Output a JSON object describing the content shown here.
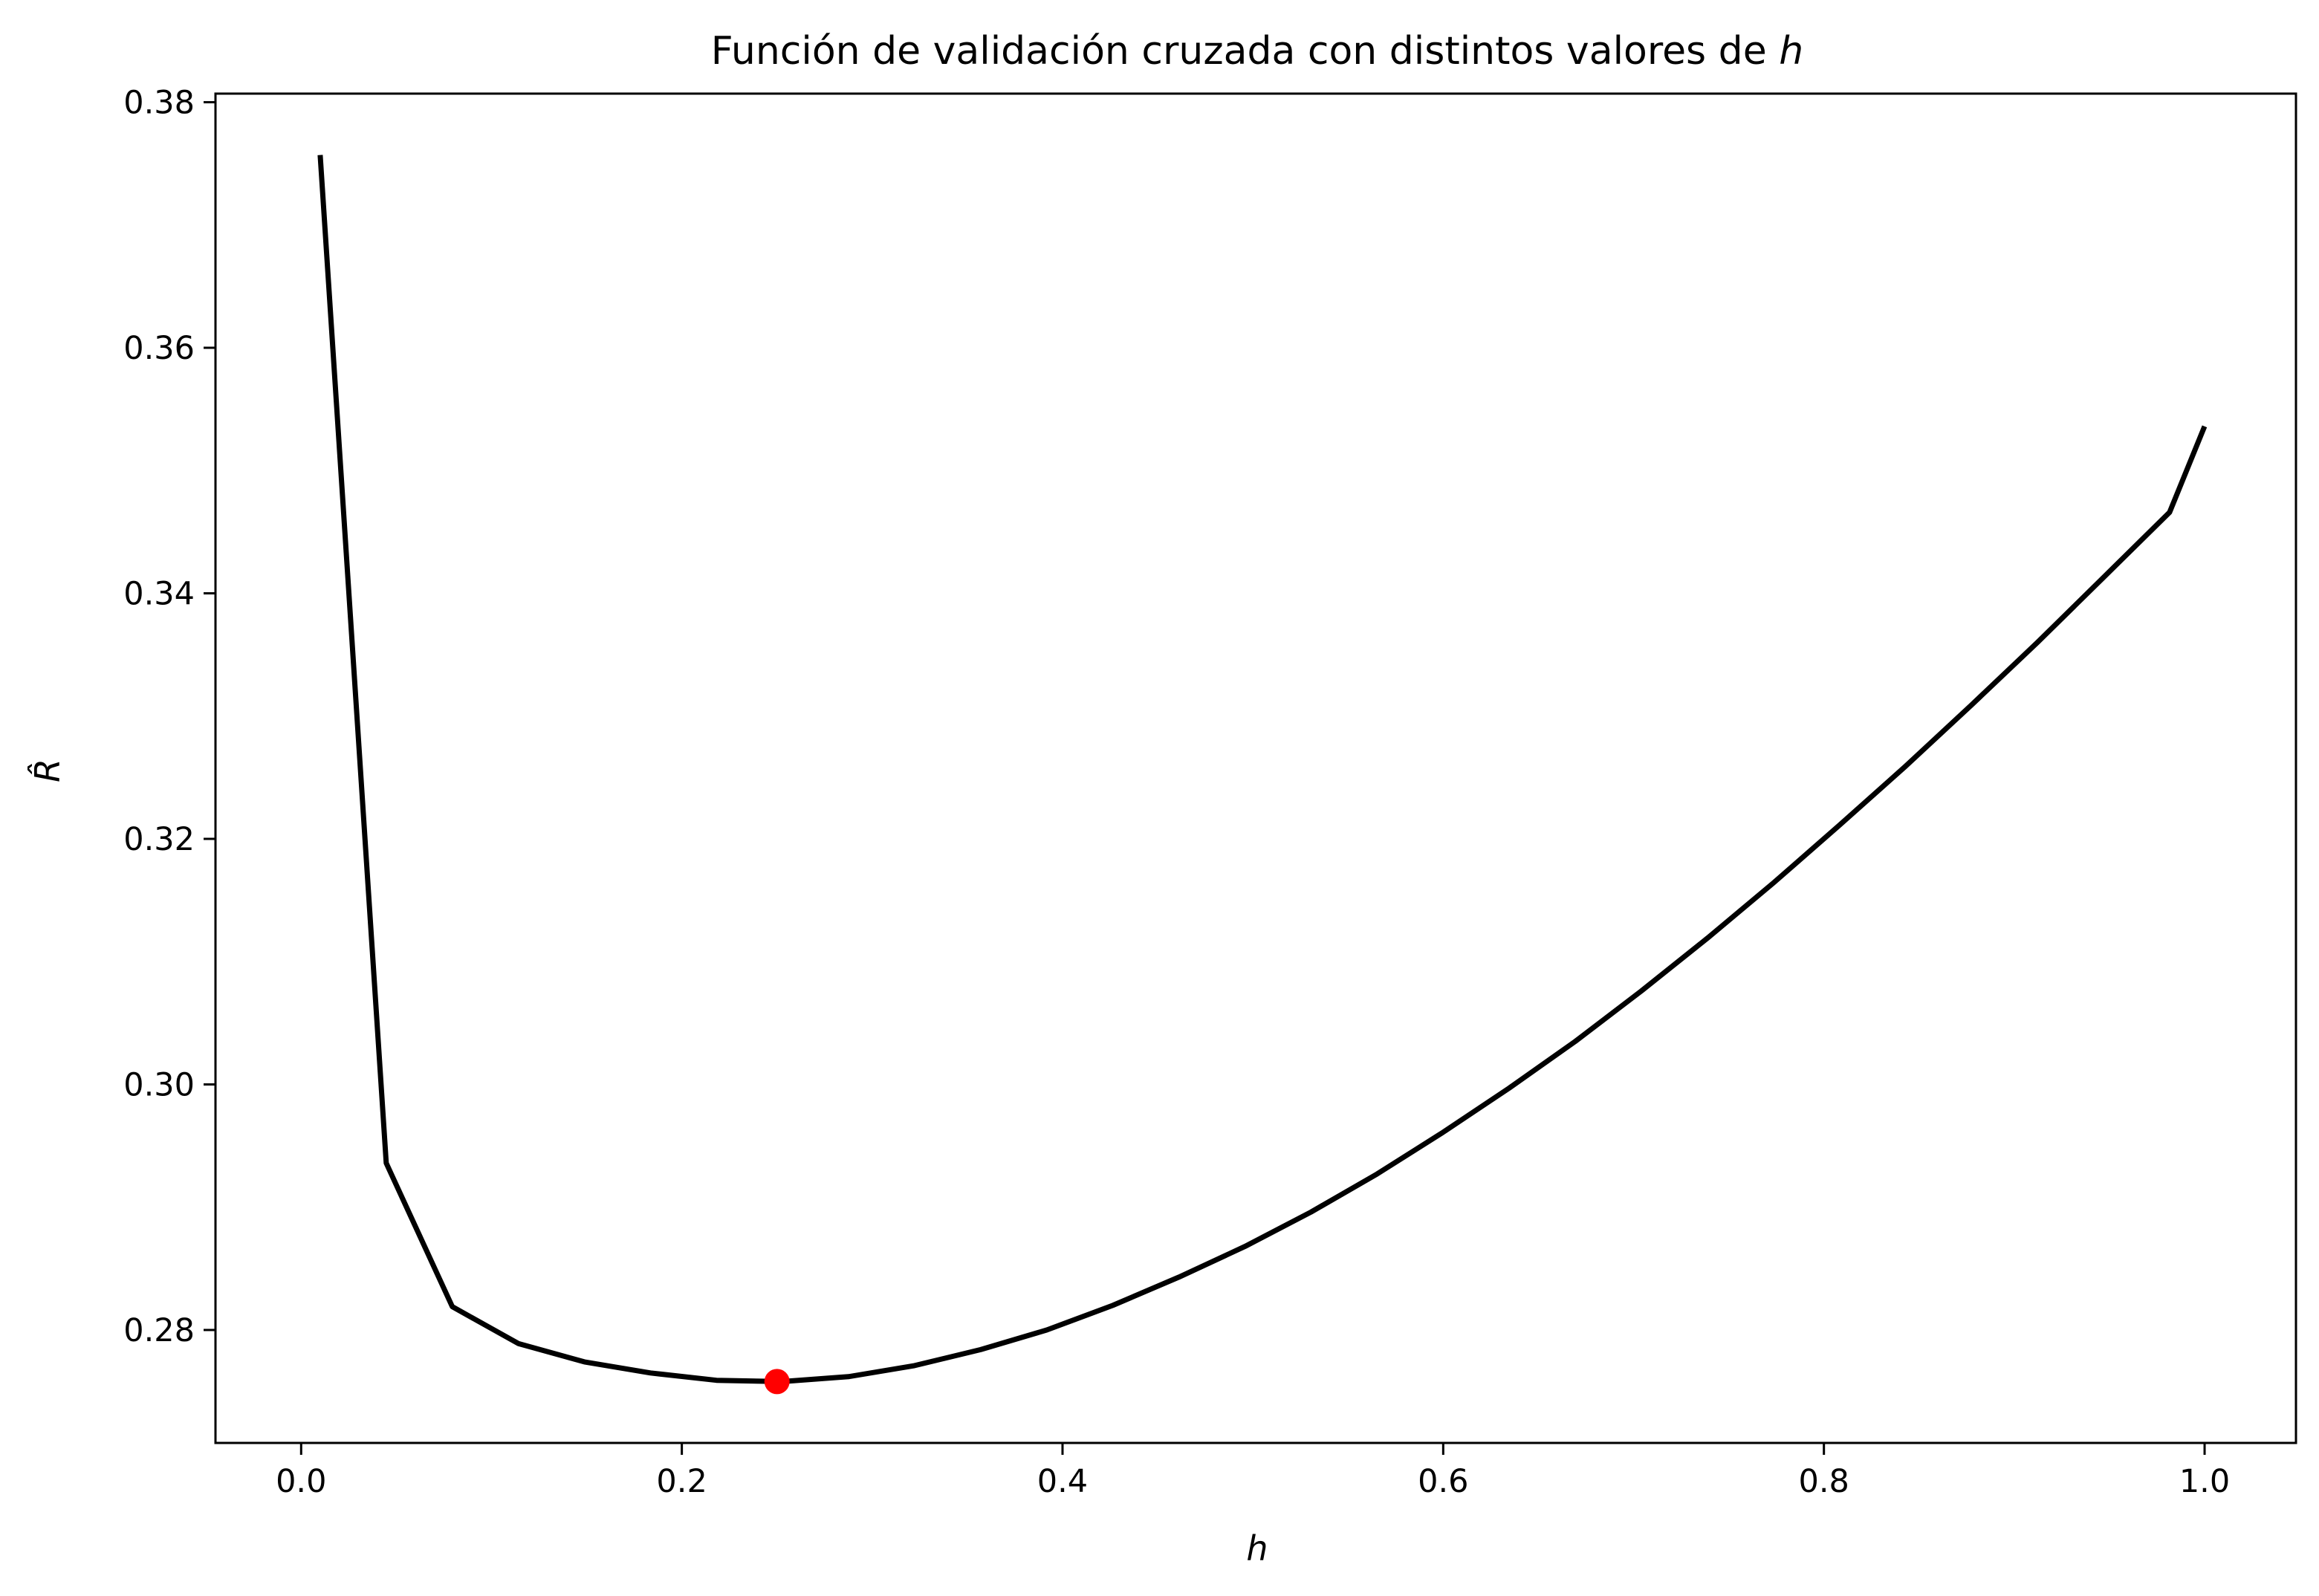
{
  "chart_data": {
    "type": "line",
    "title": "Función de validación cruzada con distintos valores de",
    "title_symbol": "h",
    "xlabel": "h",
    "ylabel": "R̂",
    "xlim": [
      -0.045,
      1.048
    ],
    "ylim": [
      0.2708,
      0.3807
    ],
    "x_ticks": [
      0.0,
      0.2,
      0.4,
      0.6,
      0.8,
      1.0
    ],
    "x_tick_labels": [
      "0.0",
      "0.2",
      "0.4",
      "0.6",
      "0.8",
      "1.0"
    ],
    "y_ticks": [
      0.28,
      0.3,
      0.32,
      0.34,
      0.36,
      0.38
    ],
    "y_tick_labels": [
      "0.28",
      "0.30",
      "0.32",
      "0.34",
      "0.36",
      "0.38"
    ],
    "grid": false,
    "series": [
      {
        "color": "#000000",
        "x": [
          0.01,
          0.0447,
          0.0794,
          0.1141,
          0.1488,
          0.1835,
          0.2182,
          0.2529,
          0.2876,
          0.3223,
          0.357,
          0.3917,
          0.4264,
          0.4611,
          0.4958,
          0.5305,
          0.5652,
          0.5999,
          0.6346,
          0.6693,
          0.704,
          0.7387,
          0.7734,
          0.8081,
          0.8428,
          0.8775,
          0.9122,
          0.9469,
          0.9816,
          1.0
        ],
        "y": [
          0.3757,
          0.2936,
          0.2819,
          0.2789,
          0.2774,
          0.2765,
          0.2759,
          0.2758,
          0.2762,
          0.2771,
          0.2784,
          0.28,
          0.282,
          0.2843,
          0.2868,
          0.2896,
          0.2927,
          0.2961,
          0.2997,
          0.3035,
          0.3076,
          0.3119,
          0.3164,
          0.3211,
          0.3259,
          0.3309,
          0.336,
          0.3413,
          0.3466,
          0.3536
        ]
      }
    ],
    "highlight": {
      "x": 0.25,
      "y": 0.2758,
      "color": "#ff0000"
    }
  }
}
